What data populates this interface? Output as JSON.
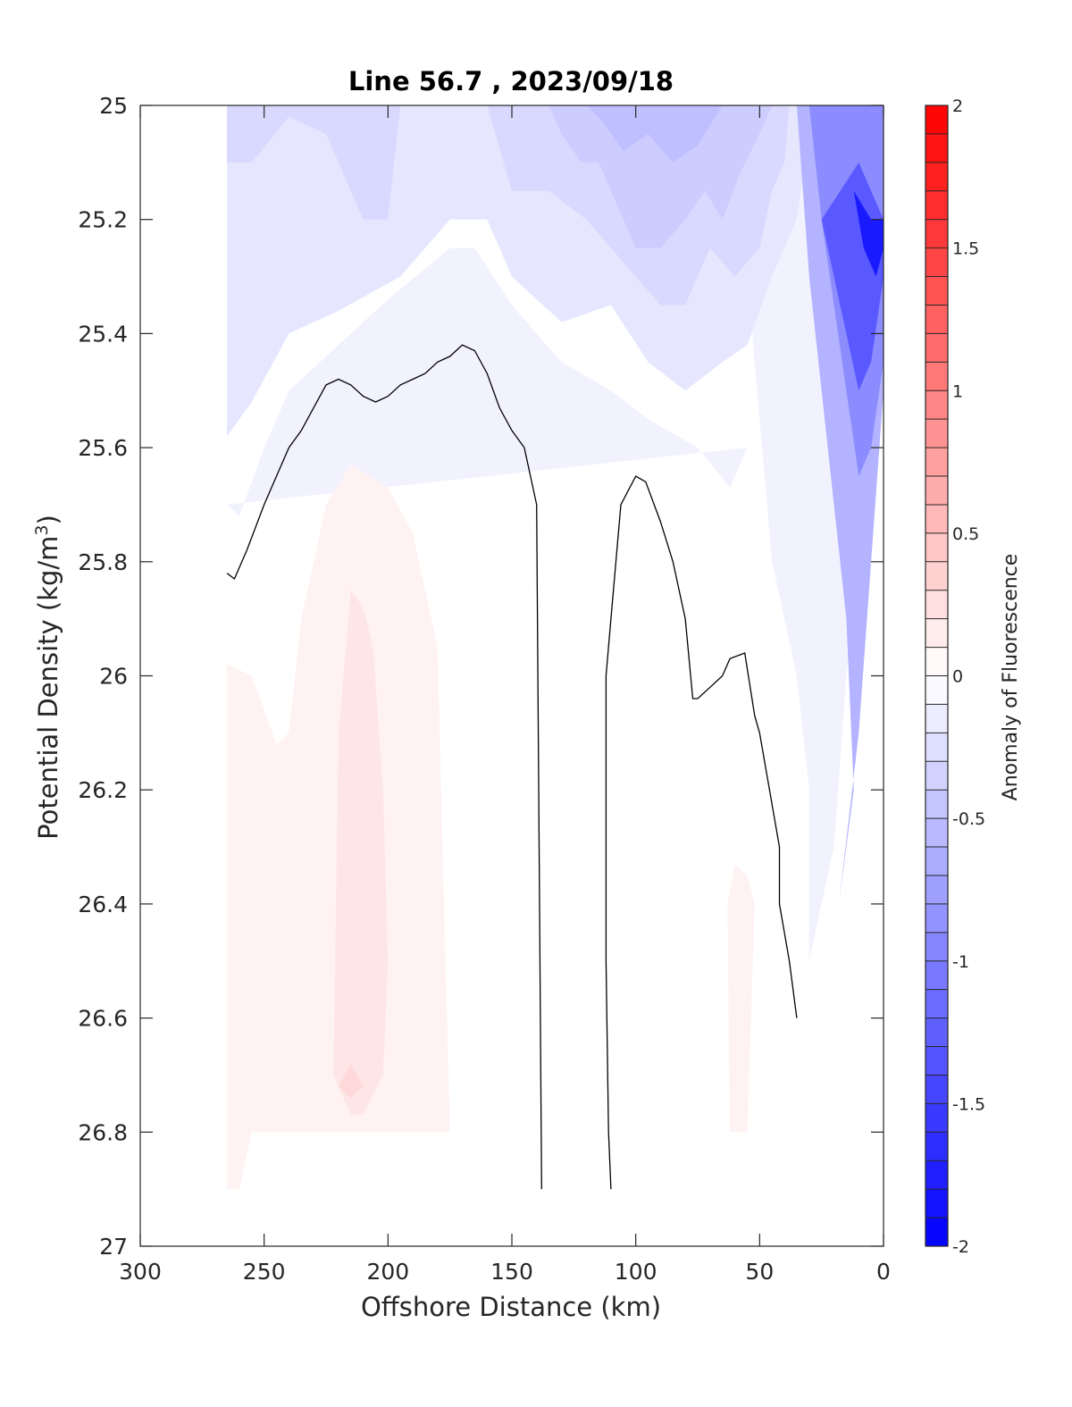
{
  "chart_data": {
    "type": "contour",
    "title": "Line 56.7 , 2023/09/18",
    "xlabel": "Offshore Distance (km)",
    "ylabel": "Potential Density (kg/m",
    "ylabel_sup": "3",
    "ylabel_close": ")",
    "xlim": [
      300,
      0
    ],
    "ylim": [
      25,
      27
    ],
    "x_reversed": true,
    "y_reversed": true,
    "grid": false,
    "xticks": [
      300,
      250,
      200,
      150,
      100,
      50,
      0
    ],
    "yticks": [
      25,
      25.2,
      25.4,
      25.6,
      25.8,
      26,
      26.2,
      26.4,
      26.6,
      26.8,
      27
    ],
    "xtick_labels": [
      "300",
      "250",
      "200",
      "150",
      "100",
      "50",
      "0"
    ],
    "ytick_labels": [
      "25",
      "25.2",
      "25.4",
      "25.6",
      "25.8",
      "26",
      "26.2",
      "26.4",
      "26.6",
      "26.8",
      "27"
    ],
    "colorbar": {
      "label": "Anomaly of Fluorescence",
      "range": [
        -2,
        2
      ],
      "step": 0.1,
      "ticks": [
        2,
        1.5,
        1,
        0.5,
        0,
        -0.5,
        -1,
        -1.5,
        -2
      ],
      "tick_labels": [
        "2",
        "1.5",
        "1",
        "0.5",
        "0",
        "-0.5",
        "-1",
        "-1.5",
        "-2"
      ],
      "low_color": "#0000ff",
      "mid_color": "#ffffff",
      "high_color": "#ff0000"
    },
    "filled_regions": [
      {
        "level": -0.1,
        "points": [
          [
            265,
            25
          ],
          [
            60,
            25
          ],
          [
            53,
            25.4
          ],
          [
            45,
            25.8
          ],
          [
            35,
            26
          ],
          [
            30,
            26.2
          ],
          [
            30,
            26.5
          ],
          [
            20,
            26.3
          ],
          [
            15,
            26
          ],
          [
            10,
            25.8
          ],
          [
            5,
            25.5
          ],
          [
            0,
            25.4
          ],
          [
            0,
            25
          ],
          [
            265,
            25
          ],
          [
            265,
            25.7
          ],
          [
            260,
            25.72
          ],
          [
            250,
            25.6
          ],
          [
            240,
            25.5
          ],
          [
            220,
            25.42
          ],
          [
            200,
            25.34
          ],
          [
            175,
            25.25
          ],
          [
            165,
            25.25
          ],
          [
            150,
            25.35
          ],
          [
            130,
            25.45
          ],
          [
            110,
            25.5
          ],
          [
            95,
            25.55
          ],
          [
            75,
            25.6
          ],
          [
            62,
            25.67
          ],
          [
            55,
            25.6
          ],
          [
            265,
            25.7
          ]
        ]
      },
      {
        "level": -0.2,
        "points": [
          [
            265,
            25
          ],
          [
            265,
            25.58
          ],
          [
            255,
            25.52
          ],
          [
            240,
            25.4
          ],
          [
            220,
            25.36
          ],
          [
            195,
            25.3
          ],
          [
            175,
            25.2
          ],
          [
            160,
            25.2
          ],
          [
            150,
            25.3
          ],
          [
            130,
            25.38
          ],
          [
            110,
            25.35
          ],
          [
            95,
            25.45
          ],
          [
            80,
            25.5
          ],
          [
            65,
            25.45
          ],
          [
            55,
            25.42
          ],
          [
            45,
            25.3
          ],
          [
            35,
            25.2
          ],
          [
            30,
            25.05
          ],
          [
            30,
            25
          ]
        ]
      },
      {
        "level": -0.3,
        "points": [
          [
            265,
            25
          ],
          [
            265,
            25.1
          ],
          [
            255,
            25.1
          ],
          [
            240,
            25.02
          ],
          [
            225,
            25.05
          ],
          [
            210,
            25.2
          ],
          [
            200,
            25.2
          ],
          [
            195,
            25
          ],
          [
            160,
            25
          ],
          [
            150,
            25.15
          ],
          [
            135,
            25.15
          ],
          [
            120,
            25.2
          ],
          [
            110,
            25.25
          ],
          [
            100,
            25.3
          ],
          [
            90,
            25.35
          ],
          [
            80,
            25.35
          ],
          [
            70,
            25.25
          ],
          [
            60,
            25.3
          ],
          [
            50,
            25.25
          ],
          [
            45,
            25.15
          ],
          [
            40,
            25.1
          ],
          [
            38,
            25
          ]
        ]
      },
      {
        "level": -0.4,
        "points": [
          [
            135,
            25
          ],
          [
            130,
            25.05
          ],
          [
            122,
            25.1
          ],
          [
            115,
            25.1
          ],
          [
            110,
            25.15
          ],
          [
            100,
            25.25
          ],
          [
            90,
            25.25
          ],
          [
            80,
            25.2
          ],
          [
            72,
            25.15
          ],
          [
            65,
            25.2
          ],
          [
            58,
            25.12
          ],
          [
            50,
            25.05
          ],
          [
            45,
            25
          ]
        ]
      },
      {
        "level": -0.5,
        "points": [
          [
            120,
            25
          ],
          [
            115,
            25.02
          ],
          [
            105,
            25.08
          ],
          [
            95,
            25.05
          ],
          [
            85,
            25.1
          ],
          [
            75,
            25.07
          ],
          [
            68,
            25.02
          ],
          [
            65,
            25
          ]
        ]
      },
      {
        "level": 0.1,
        "points": [
          [
            265,
            26.9
          ],
          [
            265,
            25.98
          ],
          [
            255,
            26
          ],
          [
            245,
            26.12
          ],
          [
            240,
            26.1
          ],
          [
            235,
            25.9
          ],
          [
            225,
            25.7
          ],
          [
            215,
            25.63
          ],
          [
            200,
            25.67
          ],
          [
            190,
            25.75
          ],
          [
            180,
            25.95
          ],
          [
            178,
            26.3
          ],
          [
            175,
            26.8
          ],
          [
            255,
            26.8
          ],
          [
            260,
            26.9
          ]
        ]
      },
      {
        "level": 0.1,
        "points": [
          [
            62,
            26.8
          ],
          [
            63,
            26.4
          ],
          [
            60,
            26.33
          ],
          [
            55,
            26.35
          ],
          [
            52,
            26.4
          ],
          [
            55,
            26.8
          ]
        ]
      },
      {
        "level": 0.2,
        "points": [
          [
            222,
            26.7
          ],
          [
            220,
            26.1
          ],
          [
            215,
            25.85
          ],
          [
            210,
            25.88
          ],
          [
            206,
            25.95
          ],
          [
            202,
            26.2
          ],
          [
            200,
            26.5
          ],
          [
            202,
            26.7
          ],
          [
            210,
            26.77
          ],
          [
            215,
            26.77
          ]
        ]
      },
      {
        "level": 0.3,
        "points": [
          [
            220,
            26.72
          ],
          [
            215,
            26.68
          ],
          [
            210,
            26.72
          ],
          [
            215,
            26.74
          ]
        ]
      },
      {
        "level": -0.6,
        "points": [
          [
            35,
            25
          ],
          [
            30,
            25.3
          ],
          [
            25,
            25.5
          ],
          [
            20,
            25.7
          ],
          [
            15,
            25.9
          ],
          [
            12,
            26.2
          ],
          [
            18,
            26.4
          ],
          [
            10,
            26.1
          ],
          [
            5,
            25.8
          ],
          [
            0,
            25.5
          ],
          [
            0,
            25
          ]
        ]
      },
      {
        "level": -0.9,
        "points": [
          [
            30,
            25
          ],
          [
            25,
            25.2
          ],
          [
            20,
            25.35
          ],
          [
            15,
            25.5
          ],
          [
            10,
            25.65
          ],
          [
            5,
            25.6
          ],
          [
            0,
            25.45
          ],
          [
            0,
            25
          ]
        ]
      },
      {
        "level": -1.3,
        "points": [
          [
            25,
            25.2
          ],
          [
            20,
            25.3
          ],
          [
            15,
            25.4
          ],
          [
            10,
            25.5
          ],
          [
            5,
            25.45
          ],
          [
            0,
            25.3
          ],
          [
            0,
            25.2
          ],
          [
            10,
            25.1
          ]
        ]
      },
      {
        "level": -1.8,
        "points": [
          [
            12,
            25.15
          ],
          [
            8,
            25.25
          ],
          [
            3,
            25.3
          ],
          [
            0,
            25.25
          ],
          [
            0,
            25.2
          ],
          [
            5,
            25.2
          ]
        ]
      }
    ],
    "zero_contours": [
      {
        "points": [
          [
            265,
            25.82
          ],
          [
            262,
            25.83
          ],
          [
            257,
            25.78
          ],
          [
            250,
            25.7
          ],
          [
            245,
            25.65
          ],
          [
            240,
            25.6
          ],
          [
            235,
            25.57
          ],
          [
            230,
            25.53
          ],
          [
            225,
            25.49
          ],
          [
            220,
            25.48
          ],
          [
            215,
            25.49
          ],
          [
            210,
            25.51
          ],
          [
            205,
            25.52
          ],
          [
            200,
            25.51
          ],
          [
            195,
            25.49
          ],
          [
            190,
            25.48
          ],
          [
            185,
            25.47
          ],
          [
            180,
            25.45
          ],
          [
            175,
            25.44
          ],
          [
            170,
            25.42
          ],
          [
            165,
            25.43
          ],
          [
            160,
            25.47
          ],
          [
            155,
            25.53
          ],
          [
            150,
            25.57
          ],
          [
            145,
            25.6
          ],
          [
            140,
            25.7
          ],
          [
            139,
            26.3
          ],
          [
            138,
            26.9
          ]
        ]
      },
      {
        "points": [
          [
            110,
            26.9
          ],
          [
            111,
            26.8
          ],
          [
            112,
            26.5
          ],
          [
            112,
            26
          ],
          [
            110,
            25.9
          ],
          [
            106,
            25.7
          ],
          [
            100,
            25.65
          ],
          [
            96,
            25.66
          ],
          [
            90,
            25.73
          ],
          [
            85,
            25.8
          ],
          [
            80,
            25.9
          ],
          [
            77,
            26.04
          ],
          [
            75,
            26.04
          ],
          [
            70,
            26.02
          ],
          [
            65,
            26
          ],
          [
            62,
            25.97
          ],
          [
            56,
            25.96
          ],
          [
            52,
            26.07
          ],
          [
            50,
            26.1
          ],
          [
            46,
            26.2
          ],
          [
            42,
            26.3
          ],
          [
            42,
            26.4
          ],
          [
            38,
            26.5
          ],
          [
            35,
            26.6
          ]
        ]
      }
    ]
  }
}
